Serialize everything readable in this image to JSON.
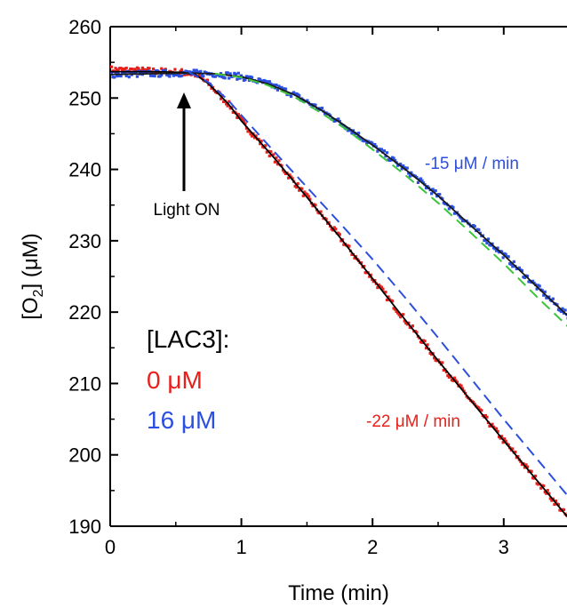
{
  "chart_data": {
    "type": "line",
    "xlabel": "Time (min)",
    "ylabel_parts": {
      "pre": "[O",
      "sub": "2",
      "post": "] (μM)"
    },
    "xlim": [
      0,
      3.5
    ],
    "ylim": [
      190,
      260
    ],
    "xticks": [
      0,
      1,
      2,
      3
    ],
    "yticks": [
      190,
      200,
      210,
      220,
      230,
      240,
      250,
      260
    ],
    "grid": false,
    "legend": {
      "title": "[LAC3]:",
      "items": [
        {
          "label": "0 μM",
          "color": "#e8201c"
        },
        {
          "label": "16 μM",
          "color": "#2b4fe0"
        }
      ]
    },
    "annotations": {
      "light_on": {
        "text": "Light ON",
        "x": 0.57,
        "y": 253.3
      },
      "rate_red": {
        "text": "-22 μM / min",
        "color": "#e8201c"
      },
      "rate_blue": {
        "text": "-15 μM / min",
        "color": "#2b4fe0"
      }
    },
    "series": [
      {
        "color": "#e8201c",
        "marker": "points",
        "x": [
          0,
          0.3,
          0.55,
          0.65,
          0.75,
          0.9,
          1.0,
          1.25,
          1.5,
          1.75,
          2.0,
          2.25,
          2.5,
          2.75,
          3.0,
          3.25,
          3.5
        ],
        "y": [
          254.0,
          253.8,
          253.6,
          253.3,
          252.0,
          249.2,
          246.8,
          241.6,
          236.1,
          230.5,
          224.7,
          218.9,
          213.2,
          207.6,
          202.0,
          196.5,
          191.0
        ]
      },
      {
        "color": "#2b4fe0",
        "marker": "points",
        "x": [
          0,
          0.3,
          0.6,
          0.8,
          1.0,
          1.2,
          1.4,
          1.6,
          1.8,
          2.0,
          2.25,
          2.5,
          2.75,
          3.0,
          3.25,
          3.5
        ],
        "y": [
          253.3,
          253.4,
          253.5,
          253.4,
          253.0,
          252.0,
          250.5,
          248.4,
          246.0,
          243.4,
          240.0,
          236.3,
          232.1,
          228.0,
          223.6,
          219.3
        ]
      },
      {
        "color": "#000000",
        "style": "solid",
        "x": [
          0,
          0.3,
          0.55,
          0.65,
          0.75,
          0.9,
          1.0,
          1.25,
          1.5,
          1.75,
          2.0,
          2.25,
          2.5,
          2.75,
          3.0,
          3.25,
          3.5
        ],
        "y": [
          253.7,
          253.7,
          253.6,
          253.3,
          252.0,
          249.2,
          246.8,
          241.6,
          236.1,
          230.5,
          224.7,
          218.9,
          213.2,
          207.6,
          202.0,
          196.5,
          191.0
        ]
      },
      {
        "color": "#1a1a1a",
        "style": "solid",
        "x": [
          0,
          0.3,
          0.6,
          0.8,
          1.0,
          1.2,
          1.4,
          1.6,
          1.8,
          2.0,
          2.25,
          2.5,
          2.75,
          3.0,
          3.25,
          3.5
        ],
        "y": [
          253.3,
          253.4,
          253.5,
          253.4,
          253.0,
          252.0,
          250.5,
          248.4,
          246.0,
          243.4,
          240.0,
          236.3,
          232.1,
          228.0,
          223.6,
          219.3
        ]
      },
      {
        "color": "#2b4fe0",
        "style": "dashed",
        "x": [
          0.6,
          0.75,
          0.9,
          1.0,
          1.25,
          1.5,
          1.75,
          2.0,
          2.25,
          2.5,
          2.75,
          3.0,
          3.25,
          3.5
        ],
        "y": [
          253.6,
          252.2,
          249.7,
          247.6,
          242.5,
          237.5,
          232.5,
          227.4,
          222.0,
          216.4,
          210.7,
          205.0,
          199.5,
          194.0
        ]
      },
      {
        "color": "#3cc43c",
        "style": "dashed",
        "x": [
          0.8,
          1.0,
          1.2,
          1.4,
          1.6,
          1.8,
          2.0,
          2.25,
          2.5,
          2.75,
          3.0,
          3.25,
          3.5
        ],
        "y": [
          253.4,
          252.9,
          251.8,
          250.2,
          248.0,
          245.6,
          242.8,
          239.2,
          235.3,
          231.1,
          226.8,
          222.2,
          217.8
        ]
      }
    ]
  }
}
